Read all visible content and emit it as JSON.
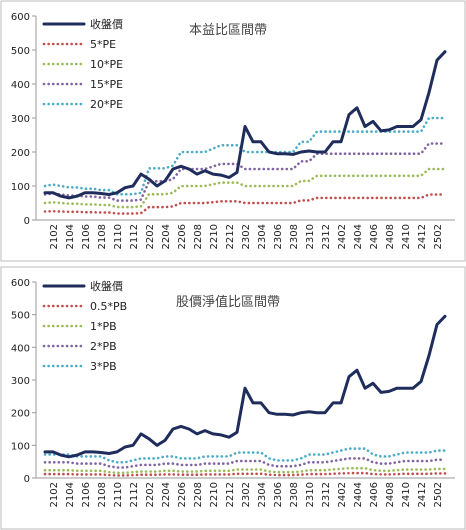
{
  "chart_data": [
    {
      "type": "line",
      "title": "本益比區間帶",
      "categories": [
        null,
        "2102",
        null,
        "2104",
        null,
        "2106",
        null,
        "2108",
        null,
        "2110",
        null,
        "2112",
        null,
        "2202",
        null,
        "2204",
        null,
        "2206",
        null,
        "2208",
        null,
        "2210",
        null,
        "2212",
        null,
        "2302",
        null,
        "2304",
        null,
        "2306",
        null,
        "2308",
        null,
        "2310",
        null,
        "2312",
        null,
        "2402",
        null,
        "2404",
        null,
        "2406",
        null,
        "2408",
        null,
        "2410",
        null,
        "2412",
        null,
        "2502",
        null
      ],
      "ylim": [
        0,
        600
      ],
      "yticks": [
        0,
        100,
        200,
        300,
        400,
        500,
        600
      ],
      "series": [
        {
          "name": "收盤價",
          "color": "#1f2d5c",
          "values": [
            80,
            80,
            70,
            65,
            70,
            80,
            80,
            78,
            75,
            80,
            95,
            100,
            135,
            120,
            100,
            115,
            150,
            158,
            150,
            135,
            145,
            135,
            132,
            125,
            140,
            275,
            230,
            230,
            200,
            195,
            195,
            193,
            200,
            203,
            200,
            200,
            230,
            230,
            310,
            330,
            275,
            290,
            262,
            265,
            275,
            275,
            275,
            295,
            375,
            470,
            495
          ]
        },
        {
          "name": "5*PE",
          "color": "#c0504d",
          "values": [
            25,
            26,
            25,
            24,
            24,
            23,
            23,
            22,
            22,
            19,
            19,
            19,
            20,
            38,
            38,
            38,
            40,
            50,
            50,
            50,
            50,
            52.5,
            55,
            55,
            55,
            50,
            50,
            50,
            50,
            50,
            50,
            50,
            57.5,
            57.5,
            65,
            65,
            65,
            65,
            65,
            65,
            65,
            65,
            65,
            65,
            65,
            65,
            65,
            65,
            75,
            75,
            75
          ]
        },
        {
          "name": "10*PE",
          "color": "#9bbb59",
          "values": [
            50,
            52,
            50,
            48,
            48,
            46,
            46,
            44,
            44,
            38,
            38,
            38,
            40,
            76,
            76,
            76,
            80,
            100,
            100,
            100,
            100,
            105,
            110,
            110,
            110,
            100,
            100,
            100,
            100,
            100,
            100,
            100,
            115,
            115,
            130,
            130,
            130,
            130,
            130,
            130,
            130,
            130,
            130,
            130,
            130,
            130,
            130,
            130,
            150,
            150,
            150
          ]
        },
        {
          "name": "15*PE",
          "color": "#8064a2",
          "values": [
            75,
            78,
            75,
            72,
            72,
            69,
            69,
            66,
            66,
            57,
            57,
            57,
            60,
            114,
            114,
            114,
            120,
            150,
            150,
            150,
            150,
            157.5,
            165,
            165,
            165,
            150,
            150,
            150,
            150,
            150,
            150,
            150,
            172.5,
            172.5,
            195,
            195,
            195,
            195,
            195,
            195,
            195,
            195,
            195,
            195,
            195,
            195,
            195,
            195,
            225,
            225,
            225
          ]
        },
        {
          "name": "20*PE",
          "color": "#4bacc6",
          "values": [
            100,
            104,
            100,
            96,
            96,
            92,
            92,
            88,
            88,
            76,
            76,
            76,
            80,
            152,
            152,
            152,
            160,
            200,
            200,
            200,
            200,
            210,
            220,
            220,
            220,
            200,
            200,
            200,
            200,
            200,
            200,
            200,
            230,
            230,
            260,
            260,
            260,
            260,
            260,
            260,
            260,
            260,
            260,
            260,
            260,
            260,
            260,
            260,
            300,
            300,
            300
          ]
        }
      ]
    },
    {
      "type": "line",
      "title": "股價淨值比區間帶",
      "categories": [
        null,
        "2102",
        null,
        "2104",
        null,
        "2106",
        null,
        "2108",
        null,
        "2110",
        null,
        "2112",
        null,
        "2202",
        null,
        "2204",
        null,
        "2206",
        null,
        "2208",
        null,
        "2210",
        null,
        "2212",
        null,
        "2302",
        null,
        "2304",
        null,
        "2306",
        null,
        "2308",
        null,
        "2310",
        null,
        "2312",
        null,
        "2402",
        null,
        "2404",
        null,
        "2406",
        null,
        "2408",
        null,
        "2410",
        null,
        "2412",
        null,
        "2502",
        null
      ],
      "ylim": [
        0,
        600
      ],
      "yticks": [
        0,
        100,
        200,
        300,
        400,
        500,
        600
      ],
      "series": [
        {
          "name": "收盤價",
          "color": "#1f2d5c",
          "values": [
            80,
            80,
            70,
            65,
            70,
            80,
            80,
            78,
            75,
            80,
            95,
            100,
            135,
            120,
            100,
            115,
            150,
            158,
            150,
            135,
            145,
            135,
            132,
            125,
            140,
            275,
            230,
            230,
            200,
            195,
            195,
            193,
            200,
            203,
            200,
            200,
            230,
            230,
            310,
            330,
            275,
            290,
            262,
            265,
            275,
            275,
            275,
            295,
            375,
            470,
            495
          ]
        },
        {
          "name": "0.5*PB",
          "color": "#c0504d",
          "values": [
            12,
            12,
            12,
            12,
            11,
            11,
            11,
            11,
            9,
            8,
            8,
            9,
            10,
            10,
            10,
            11,
            11,
            10,
            10,
            10,
            11,
            11,
            11,
            11,
            13,
            13,
            13,
            13,
            10,
            9,
            9,
            9,
            10,
            12,
            12,
            12,
            13,
            14,
            15,
            15,
            15,
            12,
            11,
            11,
            12,
            13,
            13,
            13,
            13,
            14,
            14
          ]
        },
        {
          "name": "1*PB",
          "color": "#9bbb59",
          "values": [
            24,
            24,
            24,
            24,
            22,
            22,
            22,
            22,
            18,
            16,
            16,
            18,
            20,
            20,
            20,
            22,
            22,
            20,
            20,
            20,
            22,
            22,
            22,
            22,
            26,
            26,
            26,
            26,
            20,
            18,
            18,
            18,
            20,
            24,
            24,
            24,
            26,
            28,
            30,
            30,
            30,
            24,
            22,
            22,
            24,
            26,
            26,
            26,
            26,
            28,
            28
          ]
        },
        {
          "name": "2*PB",
          "color": "#8064a2",
          "values": [
            48,
            48,
            48,
            48,
            44,
            44,
            44,
            44,
            36,
            32,
            32,
            36,
            40,
            40,
            40,
            44,
            44,
            40,
            40,
            40,
            44,
            44,
            44,
            44,
            52,
            52,
            52,
            52,
            40,
            36,
            36,
            36,
            40,
            48,
            48,
            48,
            52,
            56,
            60,
            60,
            60,
            48,
            44,
            44,
            48,
            52,
            52,
            52,
            52,
            56,
            56
          ]
        },
        {
          "name": "3*PB",
          "color": "#4bacc6",
          "values": [
            72,
            72,
            72,
            72,
            66,
            66,
            66,
            66,
            54,
            48,
            48,
            54,
            60,
            60,
            60,
            66,
            66,
            60,
            60,
            60,
            66,
            66,
            66,
            66,
            78,
            78,
            78,
            78,
            60,
            54,
            54,
            54,
            60,
            72,
            72,
            72,
            78,
            84,
            90,
            90,
            90,
            72,
            66,
            66,
            72,
            78,
            78,
            78,
            78,
            84,
            84
          ]
        }
      ]
    }
  ]
}
